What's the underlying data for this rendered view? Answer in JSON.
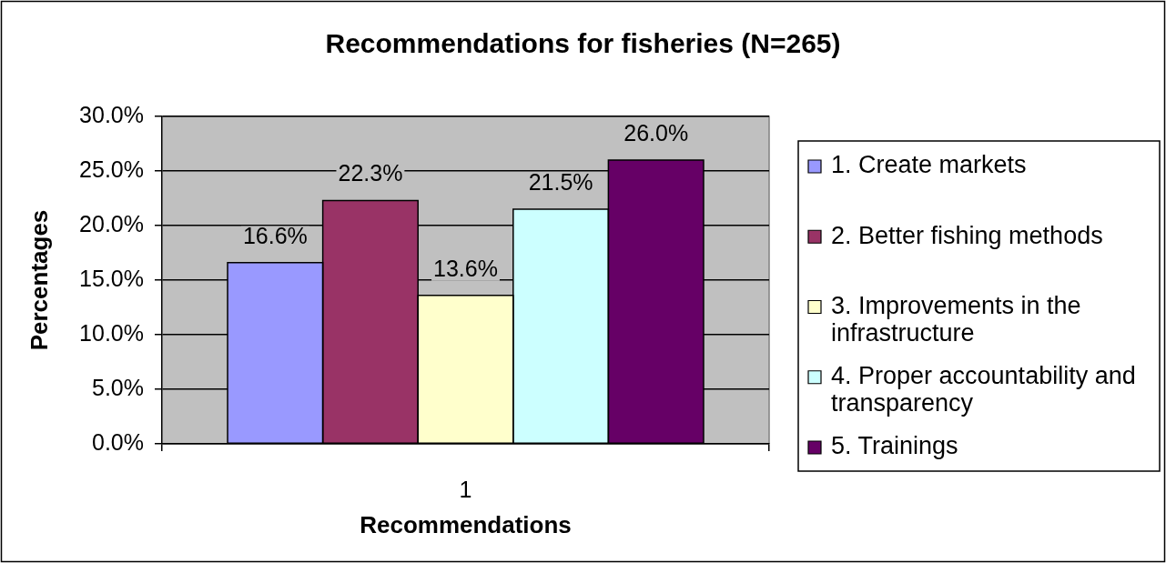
{
  "chart_data": {
    "type": "bar",
    "title": "Recommendations for fisheries (N=265)",
    "xlabel": "Recommendations",
    "ylabel": "Percentages",
    "categories": [
      "1"
    ],
    "series": [
      {
        "name": "1. Create markets",
        "color": "#9999ff",
        "values": [
          16.6
        ],
        "value_labels": [
          "16.6%"
        ]
      },
      {
        "name": "2. Better fishing methods",
        "color": "#993366",
        "values": [
          22.3
        ],
        "value_labels": [
          "22.3%"
        ]
      },
      {
        "name": "3. Improvements in the infrastructure",
        "color": "#ffffcc",
        "values": [
          13.6
        ],
        "value_labels": [
          "13.6%"
        ]
      },
      {
        "name": "4. Proper accountability and transparency",
        "color": "#ccffff",
        "values": [
          21.5
        ],
        "value_labels": [
          "21.5%"
        ]
      },
      {
        "name": "5. Trainings",
        "color": "#660066",
        "values": [
          26.0
        ],
        "value_labels": [
          "26.0%"
        ]
      }
    ],
    "ylim": [
      0,
      30
    ],
    "yticks": [
      {
        "value": 0,
        "label": "0.0%"
      },
      {
        "value": 5,
        "label": "5.0%"
      },
      {
        "value": 10,
        "label": "10.0%"
      },
      {
        "value": 15,
        "label": "15.0%"
      },
      {
        "value": 20,
        "label": "20.0%"
      },
      {
        "value": 25,
        "label": "25.0%"
      },
      {
        "value": 30,
        "label": "30.0%"
      }
    ],
    "grid": "y",
    "legend": "right"
  }
}
